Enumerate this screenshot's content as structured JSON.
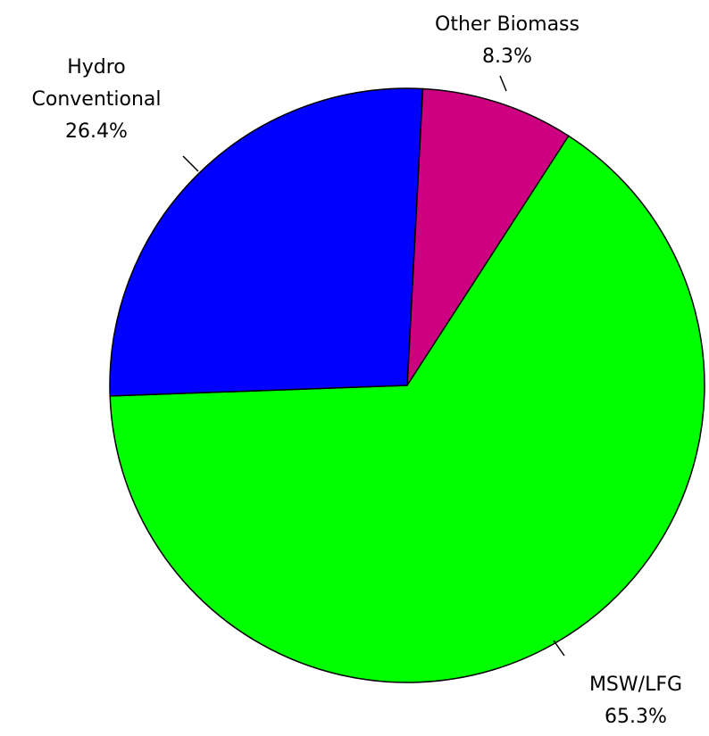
{
  "chart_data": {
    "type": "pie",
    "categories": [
      "Other Biomass",
      "MSW/LFG",
      "Hydro Conventional"
    ],
    "values": [
      8.3,
      65.3,
      26.4
    ],
    "value_labels": [
      "8.3%",
      "65.3%",
      "26.4%"
    ],
    "colors": [
      "#cc0080",
      "#00ff00",
      "#0000ff"
    ]
  }
}
